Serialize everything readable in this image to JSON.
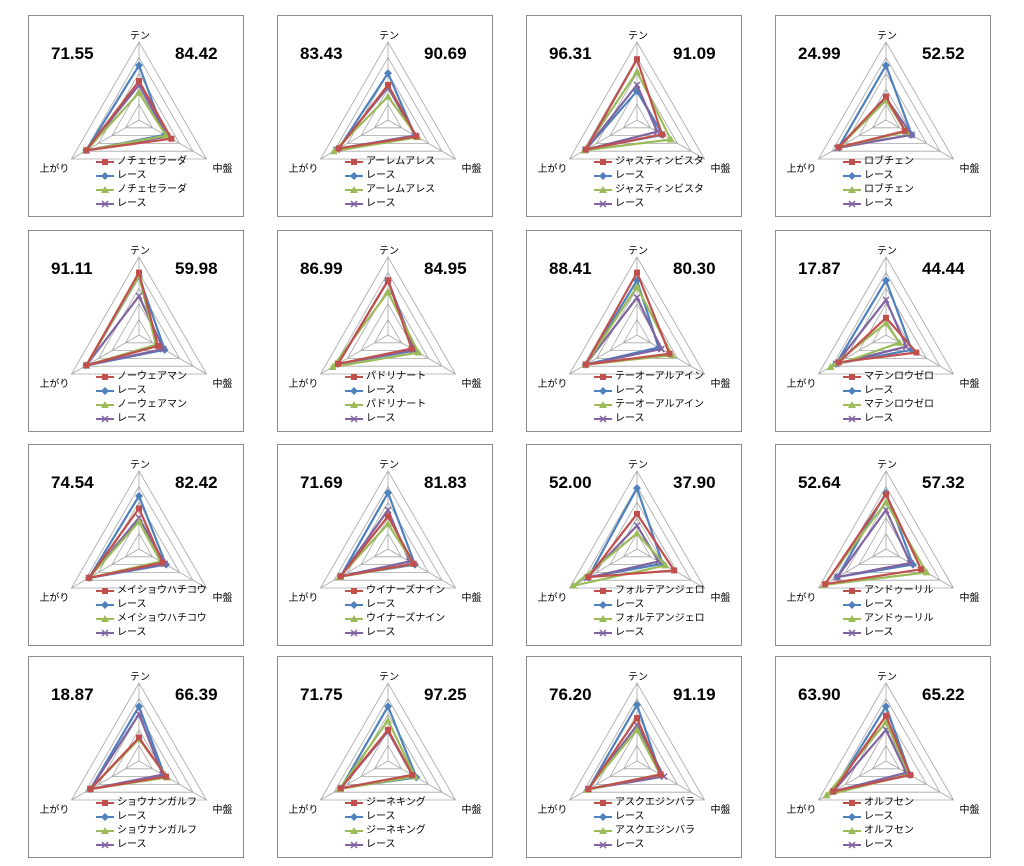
{
  "axis_labels": {
    "top": "テン",
    "left": "上がり",
    "right": "中盤"
  },
  "race_label": "レース",
  "colors": {
    "horse_a": "#c0504d",
    "race_a": "#4f81bd",
    "horse_b": "#9bbb59",
    "race_b": "#8064a2"
  },
  "chart_data": [
    {
      "type": "radar",
      "horse": "ノチェセラーダ",
      "left_value": "71.55",
      "right_value": "84.42",
      "series": [
        {
          "name": "ノチェセラーダ",
          "values": [
            50,
            78,
            48
          ]
        },
        {
          "name": "レース",
          "values": [
            70,
            78,
            38
          ]
        },
        {
          "name": "ノチェセラーダ",
          "values": [
            35,
            78,
            40
          ]
        },
        {
          "name": "レース",
          "values": [
            45,
            78,
            42
          ]
        }
      ]
    },
    {
      "type": "radar",
      "horse": "アーレムアレス",
      "left_value": "83.43",
      "right_value": "90.69",
      "series": [
        {
          "name": "アーレムアレス",
          "values": [
            45,
            73,
            42
          ]
        },
        {
          "name": "レース",
          "values": [
            60,
            73,
            40
          ]
        },
        {
          "name": "アーレムアレス",
          "values": [
            30,
            80,
            44
          ]
        },
        {
          "name": "レース",
          "values": [
            42,
            76,
            40
          ]
        }
      ]
    },
    {
      "type": "radar",
      "horse": "ジャスティンビスタ",
      "left_value": "96.31",
      "right_value": "91.09",
      "series": [
        {
          "name": "ジャスティンビスタ",
          "values": [
            78,
            76,
            37
          ]
        },
        {
          "name": "レース",
          "values": [
            37,
            76,
            38
          ]
        },
        {
          "name": "ジャスティンビスタ",
          "values": [
            62,
            78,
            50
          ]
        },
        {
          "name": "レース",
          "values": [
            45,
            76,
            30
          ]
        }
      ]
    },
    {
      "type": "radar",
      "horse": "ロブチェン",
      "left_value": "24.99",
      "right_value": "52.52",
      "series": [
        {
          "name": "ロブチェン",
          "values": [
            30,
            70,
            28
          ]
        },
        {
          "name": "レース",
          "values": [
            70,
            70,
            38
          ]
        },
        {
          "name": "ロブチェン",
          "values": [
            25,
            70,
            30
          ]
        },
        {
          "name": "レース",
          "values": [
            28,
            72,
            38
          ]
        }
      ]
    },
    {
      "type": "radar",
      "horse": "ノーウェアマン",
      "left_value": "91.11",
      "right_value": "59.98",
      "series": [
        {
          "name": "ノーウェアマン",
          "values": [
            80,
            78,
            28
          ]
        },
        {
          "name": "レース",
          "values": [
            75,
            78,
            38
          ]
        },
        {
          "name": "ノーウェアマン",
          "values": [
            76,
            78,
            25
          ]
        },
        {
          "name": "レース",
          "values": [
            50,
            78,
            36
          ]
        }
      ]
    },
    {
      "type": "radar",
      "horse": "パドリナート",
      "left_value": "86.99",
      "right_value": "84.95",
      "series": [
        {
          "name": "パドリナート",
          "values": [
            70,
            74,
            35
          ]
        },
        {
          "name": "レース",
          "values": [
            70,
            74,
            40
          ]
        },
        {
          "name": "パドリナート",
          "values": [
            55,
            82,
            45
          ]
        },
        {
          "name": "レース",
          "values": [
            70,
            74,
            38
          ]
        }
      ]
    },
    {
      "type": "radar",
      "horse": "テーオーアルアイン",
      "left_value": "88.41",
      "right_value": "80.30",
      "series": [
        {
          "name": "テーオーアルアイン",
          "values": [
            80,
            76,
            48
          ]
        },
        {
          "name": "レース",
          "values": [
            70,
            76,
            32
          ]
        },
        {
          "name": "テーオーアルアイン",
          "values": [
            62,
            76,
            52
          ]
        },
        {
          "name": "レース",
          "values": [
            48,
            76,
            36
          ]
        }
      ]
    },
    {
      "type": "radar",
      "horse": "マテンロウゼロ",
      "left_value": "17.87",
      "right_value": "44.44",
      "series": [
        {
          "name": "マテンロウゼロ",
          "values": [
            22,
            70,
            45
          ]
        },
        {
          "name": "レース",
          "values": [
            70,
            74,
            38
          ]
        },
        {
          "name": "マテンロウゼロ",
          "values": [
            15,
            82,
            20
          ]
        },
        {
          "name": "レース",
          "values": [
            45,
            74,
            30
          ]
        }
      ]
    },
    {
      "type": "radar",
      "horse": "メイショウハチコウ",
      "left_value": "74.54",
      "right_value": "82.42",
      "series": [
        {
          "name": "メイショウハチコウ",
          "values": [
            52,
            74,
            35
          ]
        },
        {
          "name": "レース",
          "values": [
            68,
            74,
            40
          ]
        },
        {
          "name": "メイショウハチコウ",
          "values": [
            35,
            74,
            32
          ]
        },
        {
          "name": "レース",
          "values": [
            40,
            74,
            38
          ]
        }
      ]
    },
    {
      "type": "radar",
      "horse": "ウイナーズナイン",
      "left_value": "71.69",
      "right_value": "81.83",
      "series": [
        {
          "name": "ウイナーズナイン",
          "values": [
            42,
            70,
            38
          ]
        },
        {
          "name": "レース",
          "values": [
            72,
            70,
            40
          ]
        },
        {
          "name": "ウイナーズナイン",
          "values": [
            32,
            72,
            38
          ]
        },
        {
          "name": "レース",
          "values": [
            50,
            70,
            32
          ]
        }
      ]
    },
    {
      "type": "radar",
      "horse": "フォルテアンジェロ",
      "left_value": "52.00",
      "right_value": "37.90",
      "series": [
        {
          "name": "フォルテアンジェロ",
          "values": [
            45,
            72,
            55
          ]
        },
        {
          "name": "レース",
          "values": [
            78,
            72,
            38
          ]
        },
        {
          "name": "フォルテアンジェロ",
          "values": [
            20,
            94,
            42
          ]
        },
        {
          "name": "レース",
          "values": [
            30,
            74,
            32
          ]
        }
      ]
    },
    {
      "type": "radar",
      "horse": "アンドゥーリル",
      "left_value": "52.64",
      "right_value": "57.32",
      "series": [
        {
          "name": "アンドゥーリル",
          "values": [
            70,
            90,
            52
          ]
        },
        {
          "name": "レース",
          "values": [
            72,
            72,
            40
          ]
        },
        {
          "name": "アンドゥーリル",
          "values": [
            60,
            92,
            60
          ]
        },
        {
          "name": "レース",
          "values": [
            50,
            72,
            36
          ]
        }
      ]
    },
    {
      "type": "radar",
      "horse": "ショウナンガルフ",
      "left_value": "18.87",
      "right_value": "66.39",
      "series": [
        {
          "name": "ショウナンガルフ",
          "values": [
            30,
            72,
            40
          ]
        },
        {
          "name": "レース",
          "values": [
            70,
            72,
            38
          ]
        },
        {
          "name": "ショウナンガルフ",
          "values": [
            28,
            72,
            42
          ]
        },
        {
          "name": "レース",
          "values": [
            60,
            72,
            35
          ]
        }
      ]
    },
    {
      "type": "radar",
      "horse": "ジーネキング",
      "left_value": "71.75",
      "right_value": "97.25",
      "series": [
        {
          "name": "ジーネキング",
          "values": [
            40,
            70,
            36
          ]
        },
        {
          "name": "レース",
          "values": [
            70,
            70,
            42
          ]
        },
        {
          "name": "ジーネキング",
          "values": [
            52,
            72,
            40
          ]
        },
        {
          "name": "レース",
          "values": [
            38,
            70,
            36
          ]
        }
      ]
    },
    {
      "type": "radar",
      "horse": "アスクエジンバラ",
      "left_value": "76.20",
      "right_value": "91.19",
      "series": [
        {
          "name": "アスクエジンバラ",
          "values": [
            55,
            72,
            35
          ]
        },
        {
          "name": "レース",
          "values": [
            72,
            72,
            35
          ]
        },
        {
          "name": "アスクエジンバラ",
          "values": [
            40,
            74,
            34
          ]
        },
        {
          "name": "レース",
          "values": [
            46,
            72,
            40
          ]
        }
      ]
    },
    {
      "type": "radar",
      "horse": "オルフセン",
      "left_value": "63.90",
      "right_value": "65.22",
      "series": [
        {
          "name": "オルフセン",
          "values": [
            58,
            78,
            36
          ]
        },
        {
          "name": "レース",
          "values": [
            70,
            78,
            36
          ]
        },
        {
          "name": "オルフセン",
          "values": [
            50,
            88,
            34
          ]
        },
        {
          "name": "レース",
          "values": [
            40,
            78,
            30
          ]
        }
      ]
    }
  ]
}
